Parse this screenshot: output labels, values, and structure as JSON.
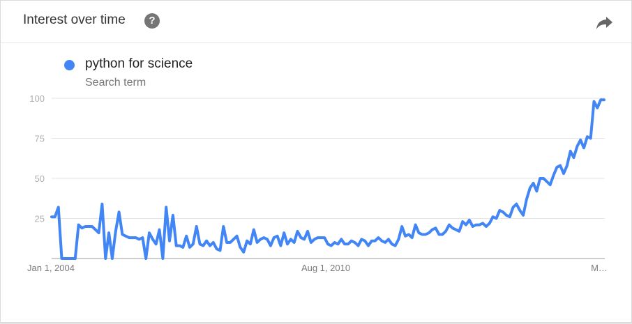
{
  "header": {
    "title": "Interest over time",
    "help_label": "?",
    "help_icon": "help-circle-icon",
    "share_icon": "share-arrow-icon"
  },
  "legend": {
    "term": "python for science",
    "subtitle": "Search term",
    "color": "#4285f4"
  },
  "chart_data": {
    "type": "line",
    "title": "",
    "xlabel": "",
    "ylabel": "",
    "ylim": [
      0,
      100
    ],
    "yticks": [
      25,
      50,
      75,
      100
    ],
    "ytick_labels": [
      "25",
      "50",
      "75",
      "100"
    ],
    "xtick_labels": [
      "Jan 1, 2004",
      "Aug 1, 2010",
      "M…"
    ],
    "grid": true,
    "series": [
      {
        "color": "#4285f4",
        "values": [
          26,
          26,
          32,
          0,
          0,
          0,
          0,
          0,
          21,
          19,
          20,
          20,
          20,
          18,
          16,
          34,
          0,
          16,
          0,
          17,
          29,
          15,
          14,
          13,
          13,
          13,
          12,
          13,
          0,
          16,
          12,
          9,
          18,
          0,
          32,
          11,
          27,
          8,
          8,
          7,
          14,
          7,
          9,
          20,
          9,
          8,
          11,
          8,
          10,
          6,
          5,
          20,
          10,
          10,
          12,
          14,
          7,
          4,
          11,
          9,
          18,
          10,
          12,
          13,
          12,
          8,
          13,
          14,
          8,
          16,
          9,
          12,
          10,
          17,
          13,
          12,
          17,
          10,
          12,
          13,
          13,
          13,
          9,
          8,
          10,
          9,
          12,
          9,
          9,
          11,
          10,
          8,
          12,
          11,
          8,
          11,
          11,
          13,
          11,
          10,
          12,
          9,
          8,
          12,
          20,
          14,
          15,
          13,
          21,
          16,
          15,
          15,
          16,
          18,
          19,
          15,
          15,
          17,
          21,
          19,
          18,
          17,
          23,
          21,
          24,
          20,
          21,
          21,
          22,
          20,
          22,
          26,
          25,
          30,
          29,
          27,
          26,
          32,
          34,
          30,
          27,
          37,
          44,
          47,
          42,
          50,
          50,
          48,
          46,
          52,
          57,
          58,
          53,
          58,
          67,
          63,
          70,
          74,
          69,
          76,
          75,
          98,
          94,
          99,
          99
        ]
      }
    ]
  }
}
